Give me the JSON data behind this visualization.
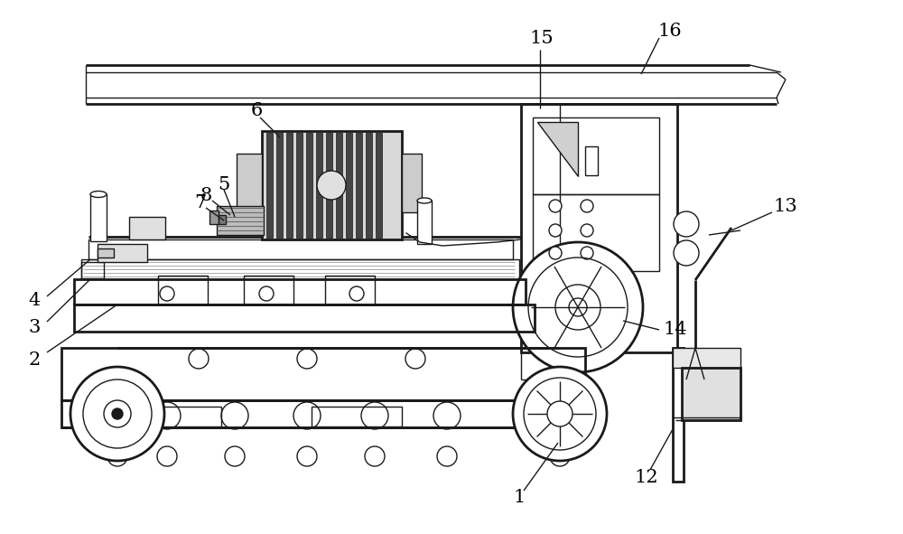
{
  "bg_color": "#ffffff",
  "lc": "#1a1a1a",
  "lw": 1.0,
  "tlw": 2.0,
  "fw": 10.0,
  "fh": 5.91
}
